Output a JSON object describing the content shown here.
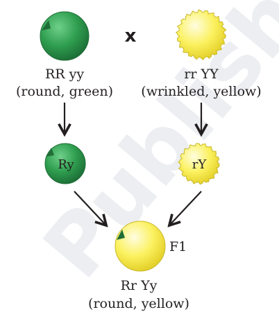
{
  "diagram": {
    "cross_symbol": "x",
    "parent_green": {
      "genotype": "RR yy",
      "phenotype": "(round, green)"
    },
    "parent_yellow": {
      "genotype": "rr YY",
      "phenotype": "(wrinkled, yellow)"
    },
    "gamete_green": {
      "label": "Ry"
    },
    "gamete_yellow": {
      "label": "rY"
    },
    "offspring": {
      "generation": "F1",
      "genotype": "Rr Yy",
      "phenotype": "(round, yellow)"
    },
    "watermark": "Published"
  },
  "colors": {
    "green_fill": "#2f9e4f",
    "green_edge": "#1f6e38",
    "yellow_fill": "#fbf15f",
    "yellow_edge": "#c9b92a",
    "text": "#231f20",
    "arrow": "#231f20",
    "watermark": "#e3e6ea"
  }
}
